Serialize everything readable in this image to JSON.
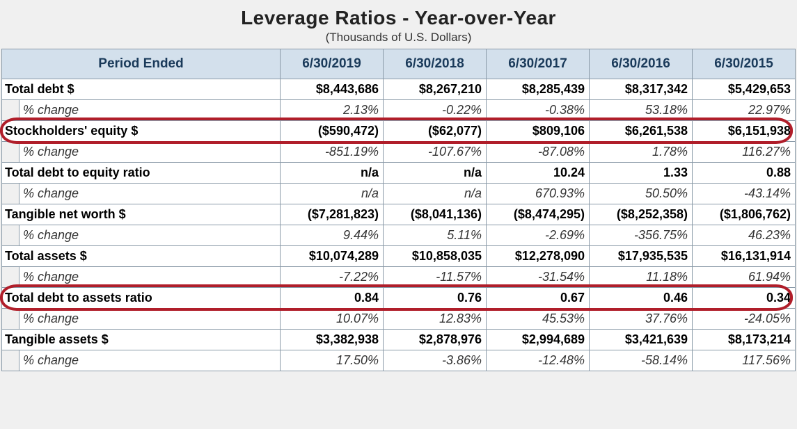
{
  "title": "Leverage Ratios - Year-over-Year",
  "subtitle": "(Thousands of U.S. Dollars)",
  "header": {
    "period_label": "Period Ended",
    "periods": [
      "6/30/2019",
      "6/30/2018",
      "6/30/2017",
      "6/30/2016",
      "6/30/2015"
    ]
  },
  "change_label": "% change",
  "rows": [
    {
      "label": "Total debt $",
      "vals": [
        "$8,443,686",
        "$8,267,210",
        "$8,285,439",
        "$8,317,342",
        "$5,429,653"
      ],
      "pct": [
        "2.13%",
        "-0.22%",
        "-0.38%",
        "53.18%",
        "22.97%"
      ]
    },
    {
      "label": "Stockholders' equity $",
      "vals": [
        "($590,472)",
        "($62,077)",
        "$809,106",
        "$6,261,538",
        "$6,151,938"
      ],
      "pct": [
        "-851.19%",
        "-107.67%",
        "-87.08%",
        "1.78%",
        "116.27%"
      ]
    },
    {
      "label": "Total debt to equity ratio",
      "vals": [
        "n/a",
        "n/a",
        "10.24",
        "1.33",
        "0.88"
      ],
      "pct": [
        "n/a",
        "n/a",
        "670.93%",
        "50.50%",
        "-43.14%"
      ]
    },
    {
      "label": "Tangible net worth $",
      "vals": [
        "($7,281,823)",
        "($8,041,136)",
        "($8,474,295)",
        "($8,252,358)",
        "($1,806,762)"
      ],
      "pct": [
        "9.44%",
        "5.11%",
        "-2.69%",
        "-356.75%",
        "46.23%"
      ]
    },
    {
      "label": "Total assets $",
      "vals": [
        "$10,074,289",
        "$10,858,035",
        "$12,278,090",
        "$17,935,535",
        "$16,131,914"
      ],
      "pct": [
        "-7.22%",
        "-11.57%",
        "-31.54%",
        "11.18%",
        "61.94%"
      ]
    },
    {
      "label": "Total debt to assets ratio",
      "vals": [
        "0.84",
        "0.76",
        "0.67",
        "0.46",
        "0.34"
      ],
      "pct": [
        "10.07%",
        "12.83%",
        "45.53%",
        "37.76%",
        "-24.05%"
      ]
    },
    {
      "label": "Tangible assets $",
      "vals": [
        "$3,382,938",
        "$2,878,976",
        "$2,994,689",
        "$3,421,639",
        "$8,173,214"
      ],
      "pct": [
        "17.50%",
        "-3.86%",
        "-12.48%",
        "-58.14%",
        "117.56%"
      ]
    }
  ],
  "styling": {
    "header_bg": "#d3e0ec",
    "header_fg": "#1a3a5a",
    "border_color": "#8a9aa8",
    "page_bg": "#f0f0f0",
    "highlight_color": "#b01e2a",
    "title_fontsize": 28,
    "cell_fontsize": 18,
    "font_family": "Arial Narrow",
    "highlight_rows": [
      1,
      5
    ]
  }
}
